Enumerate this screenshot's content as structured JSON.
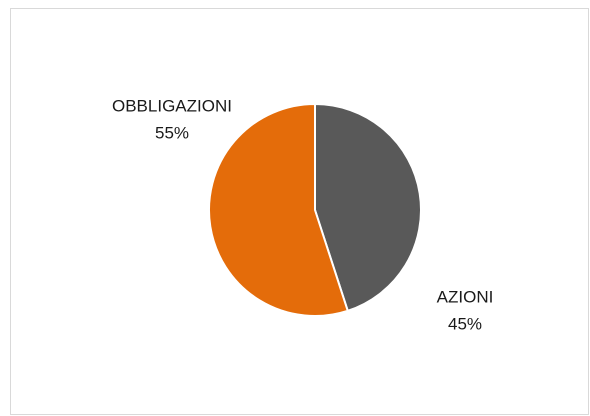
{
  "chart_data": {
    "type": "pie",
    "categories": [
      "AZIONI",
      "OBBLIGAZIONI"
    ],
    "values": [
      45,
      55
    ],
    "value_labels": [
      "45%",
      "55%"
    ],
    "colors": [
      "#595959",
      "#e46c0a"
    ]
  }
}
